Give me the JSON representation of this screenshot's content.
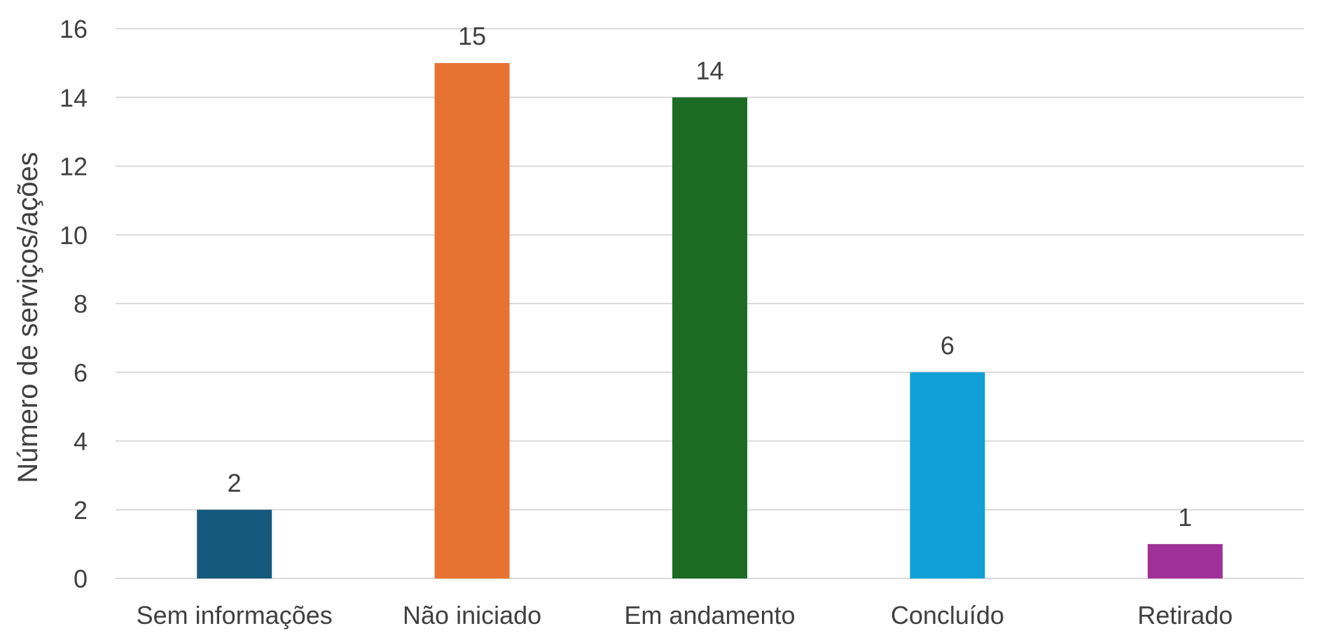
{
  "chart_data": {
    "type": "bar",
    "title": "",
    "xlabel": "",
    "ylabel": "Número de  serviços/ações",
    "categories": [
      "Sem informações",
      "Não iniciado",
      "Em andamento",
      "Concluído",
      "Retirado"
    ],
    "values": [
      2,
      15,
      14,
      6,
      1
    ],
    "colors": [
      "#155a7c",
      "#e87232",
      "#1b6b25",
      "#10a0d7",
      "#a0309a"
    ],
    "ylim": [
      0,
      16
    ],
    "yticks": [
      0,
      2,
      4,
      6,
      8,
      10,
      12,
      14,
      16
    ],
    "grid": true,
    "legend": "none",
    "data_labels": true
  }
}
